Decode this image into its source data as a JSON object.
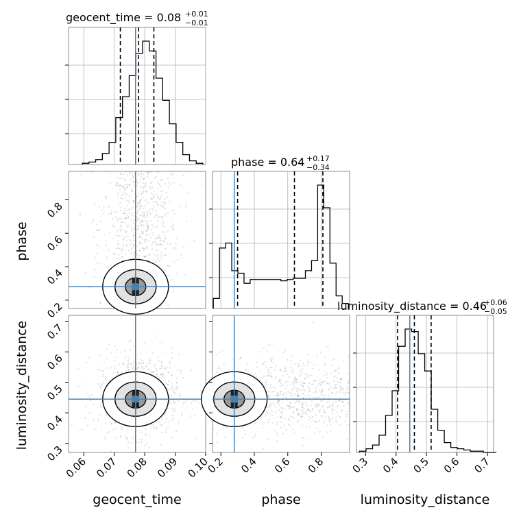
{
  "chart_data": {
    "type": "corner",
    "truth_color": "#4682b4",
    "parameters": [
      "geocent_time",
      "phase",
      "luminosity_distance"
    ],
    "axis_labels": {
      "geocent_time": "geocent_time",
      "phase": "phase",
      "luminosity_distance": "luminosity_distance"
    },
    "ranges": {
      "geocent_time": [
        0.055,
        0.1
      ],
      "phase": [
        0.15,
        0.97
      ],
      "luminosity_distance": [
        0.27,
        0.72
      ]
    },
    "ticks": {
      "geocent_time": [
        0.06,
        0.07,
        0.08,
        0.09,
        0.1
      ],
      "phase": [
        0.2,
        0.4,
        0.6,
        0.8
      ],
      "luminosity_distance": [
        0.3,
        0.4,
        0.5,
        0.6,
        0.7
      ]
    },
    "tick_labels": {
      "geocent_time": [
        "0.06",
        "0.07",
        "0.08",
        "0.09",
        "0.10"
      ],
      "phase": [
        "0.2",
        "0.4",
        "0.6",
        "0.8"
      ],
      "luminosity_distance": [
        "0.3",
        "0.4",
        "0.5",
        "0.6",
        "0.7"
      ]
    },
    "truths": {
      "geocent_time": 0.077,
      "phase": 0.28,
      "luminosity_distance": 0.445
    },
    "quantiles": {
      "geocent_time": [
        0.072,
        0.078,
        0.083
      ],
      "phase": [
        0.3,
        0.64,
        0.81
      ],
      "luminosity_distance": [
        0.405,
        0.46,
        0.515
      ]
    },
    "titles": {
      "geocent_time": {
        "main": "geocent_time = 0.08",
        "sup": "+0.01",
        "sub": "−0.01"
      },
      "phase": {
        "main": "phase = 0.64",
        "sup": "+0.17",
        "sub": "−0.34"
      },
      "luminosity_distance": {
        "main": "luminosity_distance = 0.46",
        "sup": "+0.06",
        "sub": "−0.05"
      }
    },
    "histograms": {
      "geocent_time": {
        "x0": 0.0595,
        "dx": 0.0022,
        "counts": [
          1,
          2,
          4,
          9,
          18,
          38,
          55,
          72,
          90,
          100,
          92,
          70,
          52,
          33,
          18,
          8,
          3,
          1
        ]
      },
      "phase": {
        "x0": 0.155,
        "dx": 0.0367,
        "counts": [
          8,
          48,
          52,
          30,
          28,
          20,
          23,
          23,
          23,
          23,
          23,
          22,
          23,
          24,
          24,
          30,
          38,
          98,
          80,
          36,
          10,
          4
        ]
      },
      "luminosity_distance": {
        "x0": 0.28,
        "dx": 0.0214,
        "counts": [
          1,
          3,
          6,
          14,
          30,
          50,
          86,
          100,
          98,
          80,
          66,
          35,
          18,
          8,
          4,
          3,
          2,
          1,
          1,
          0,
          0
        ]
      }
    },
    "grid": true
  }
}
